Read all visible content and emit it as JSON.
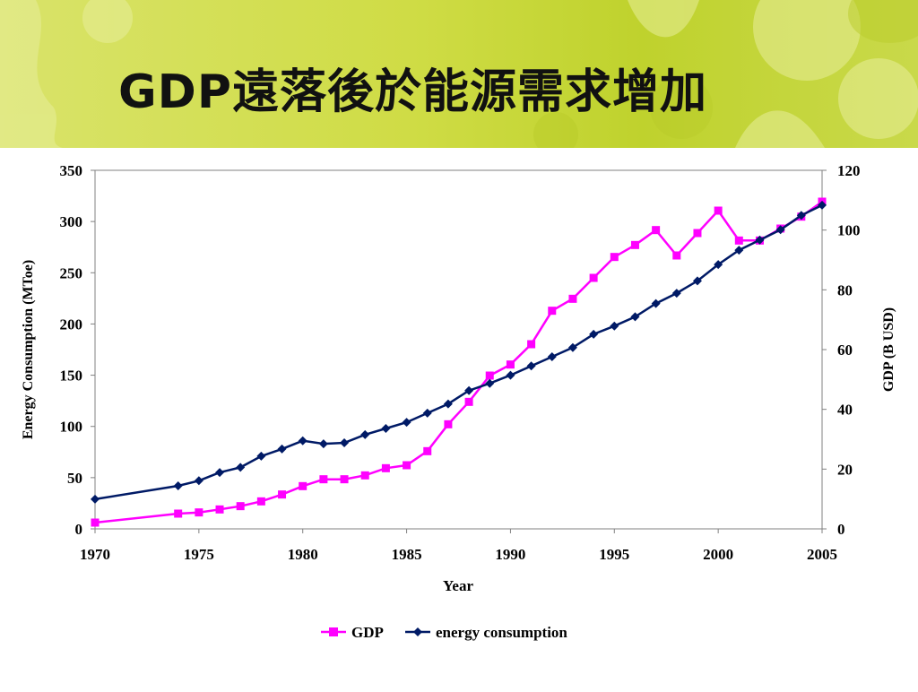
{
  "slide": {
    "title": "GDP遠落後於能源需求增加"
  },
  "colors": {
    "banner": "#cfdc45",
    "gdp": "#ff00ff",
    "energy": "#001a66"
  },
  "chart_data": {
    "type": "line",
    "xlabel": "Year",
    "ylabel_left": "Energy Consumption (MToe)",
    "ylabel_right": "GDP (B USD)",
    "xlim": [
      1970,
      2005
    ],
    "ylim_left": [
      0,
      350
    ],
    "ylim_right": [
      0,
      120
    ],
    "x_ticks": [
      1970,
      1975,
      1980,
      1985,
      1990,
      1995,
      2000,
      2005
    ],
    "y_ticks_left": [
      0,
      50,
      100,
      150,
      200,
      250,
      300,
      350
    ],
    "y_ticks_right": [
      0,
      20,
      40,
      60,
      80,
      100,
      120
    ],
    "legend_position": "bottom",
    "grid": false,
    "series": [
      {
        "name": "GDP",
        "axis": "right",
        "marker": "square",
        "x": [
          1970,
          1974,
          1975,
          1976,
          1977,
          1978,
          1979,
          1980,
          1981,
          1982,
          1983,
          1984,
          1985,
          1986,
          1987,
          1988,
          1989,
          1990,
          1991,
          1992,
          1993,
          1994,
          1995,
          1996,
          1997,
          1998,
          1999,
          2000,
          2001,
          2002,
          2003,
          2004,
          2005
        ],
        "values": [
          2.1,
          5.1,
          5.5,
          6.5,
          7.6,
          9.2,
          11.5,
          14.3,
          16.6,
          16.6,
          17.9,
          20.3,
          21.3,
          26.0,
          35.0,
          42.5,
          51.3,
          55.0,
          61.8,
          73.0,
          77.0,
          84.0,
          91.0,
          95.0,
          100.0,
          91.5,
          99.0,
          106.5,
          96.5,
          96.5,
          100.5,
          104.5,
          109.5
        ]
      },
      {
        "name": "energy consumption",
        "axis": "left",
        "marker": "diamond",
        "x": [
          1970,
          1974,
          1975,
          1976,
          1977,
          1978,
          1979,
          1980,
          1981,
          1982,
          1983,
          1984,
          1985,
          1986,
          1987,
          1988,
          1989,
          1990,
          1991,
          1992,
          1993,
          1994,
          1995,
          1996,
          1997,
          1998,
          1999,
          2000,
          2001,
          2002,
          2003,
          2004,
          2005
        ],
        "values": [
          29,
          42,
          47,
          55,
          60,
          71,
          78,
          86,
          83,
          84,
          92,
          98,
          104,
          113,
          122,
          135,
          142,
          150,
          159,
          168,
          177,
          190,
          198,
          207,
          220,
          230,
          242,
          258,
          272,
          282,
          292,
          306,
          316
        ]
      }
    ]
  }
}
